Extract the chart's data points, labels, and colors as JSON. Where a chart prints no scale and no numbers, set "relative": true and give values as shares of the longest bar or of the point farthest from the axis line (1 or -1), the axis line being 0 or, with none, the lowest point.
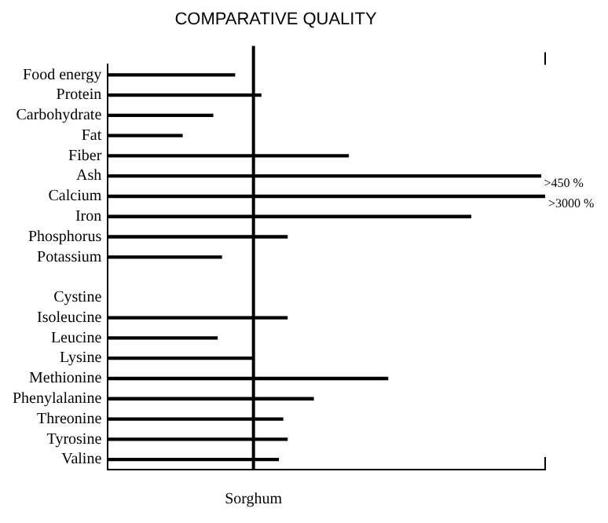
{
  "chart_data": {
    "type": "bar",
    "orientation": "horizontal",
    "relative": true,
    "title": "COMPARATIVE QUALITY",
    "categories": [
      "Food energy",
      "Protein",
      "Carbohydrate",
      "Fat",
      "Fiber",
      "Ash",
      "Calcium",
      "Iron",
      "Phosphorus",
      "Potassium",
      null,
      "Cystine",
      "Isoleucine",
      "Leucine",
      "Lysine",
      "Methionine",
      "Phenylalanine",
      "Threonine",
      "Tyrosine",
      "Valine"
    ],
    "values": [
      0.29,
      0.35,
      0.24,
      0.17,
      0.55,
      0.99,
      1,
      0.83,
      0.41,
      0.26,
      null,
      null,
      0.41,
      0.25,
      0.33,
      0.64,
      0.47,
      0.4,
      0.41,
      0.39
    ],
    "color": "#000000",
    "ref_lines": [
      {
        "axis": "x",
        "value": 0.333,
        "label": "Sorghum",
        "color": "#000000"
      }
    ],
    "annotations": [
      {
        "text": ">450 %",
        "x": 0.99,
        "y": "Ash"
      },
      {
        "text": ">3000 %",
        "x": 1,
        "y": "Calcium"
      }
    ],
    "grid": false,
    "legend": false
  }
}
